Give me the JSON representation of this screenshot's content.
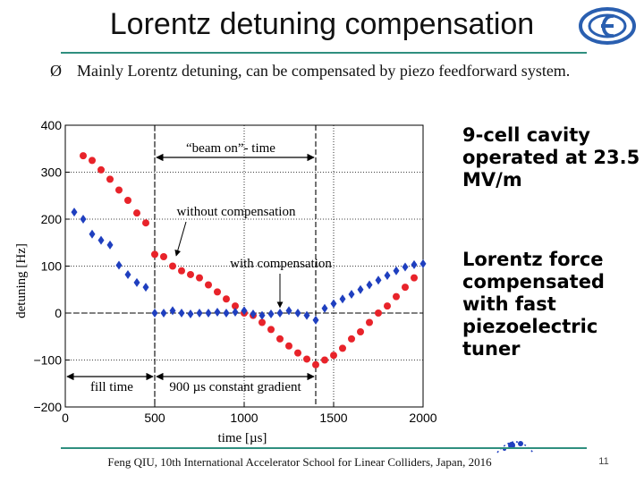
{
  "slide": {
    "title": "Lorentz detuning compensation",
    "bullet_marker": "Ø",
    "bullet_text": "Mainly Lorentz detuning, can be compensated by piezo feedforward system.",
    "side_text_1": "9-cell cavity operated at 23.5 MV/m",
    "side_text_2": "Lorentz force compensated with fast piezoelectric tuner",
    "footer": "Feng QIU, 10th International Accelerator School for Linear Colliders, Japan, 2016",
    "page_number": "11"
  },
  "colors": {
    "rule": "#2f8f7f",
    "without_series": "#e8232a",
    "with_series": "#1f3fbf",
    "logo": "#2a5fb0"
  },
  "icons": {
    "logo": "institute-logo-icon",
    "bullet": "arrow-bullet-icon"
  },
  "chart_data": {
    "type": "scatter",
    "xlabel": "time [µs]",
    "ylabel": "detuning [Hz]",
    "xlim": [
      0,
      2000
    ],
    "ylim": [
      -200,
      400
    ],
    "xticks": [
      0,
      500,
      1000,
      1500,
      2000
    ],
    "xtick_labels": [
      "0",
      "500",
      "1000",
      "1500",
      "2000"
    ],
    "yticks": [
      -200,
      -100,
      0,
      100,
      200,
      300,
      400
    ],
    "ytick_labels": [
      "−200",
      "−100",
      "0",
      "100",
      "200",
      "300",
      "400"
    ],
    "grid": true,
    "reference_lines": {
      "beam_on_start": 500,
      "beam_on_end": 1400,
      "zero": 0
    },
    "annotations": {
      "beam_on": "“beam on”- time",
      "without": "without compensation",
      "with": "with compensation",
      "fill_time": "fill time",
      "flat_top": "900 µs constant gradient"
    },
    "series": [
      {
        "name": "without compensation",
        "marker": "circle",
        "x": [
          100,
          150,
          200,
          250,
          300,
          350,
          400,
          450,
          500,
          550,
          600,
          650,
          700,
          750,
          800,
          850,
          900,
          950,
          1000,
          1050,
          1100,
          1150,
          1200,
          1250,
          1300,
          1350,
          1400,
          1450,
          1500,
          1550,
          1600,
          1650,
          1700,
          1750,
          1800,
          1850,
          1900,
          1950
        ],
        "y": [
          335,
          325,
          305,
          285,
          262,
          240,
          213,
          192,
          125,
          120,
          100,
          90,
          82,
          75,
          60,
          45,
          30,
          15,
          0,
          -5,
          -20,
          -35,
          -55,
          -70,
          -85,
          -98,
          -110,
          -100,
          -90,
          -75,
          -55,
          -40,
          -20,
          0,
          15,
          35,
          55,
          75
        ]
      },
      {
        "name": "with compensation",
        "marker": "diamond",
        "x": [
          50,
          100,
          150,
          200,
          250,
          300,
          350,
          400,
          450,
          500,
          550,
          600,
          650,
          700,
          750,
          800,
          850,
          900,
          950,
          1000,
          1050,
          1100,
          1150,
          1200,
          1250,
          1300,
          1350,
          1400,
          1450,
          1500,
          1550,
          1600,
          1650,
          1700,
          1750,
          1800,
          1850,
          1900,
          1950,
          2000
        ],
        "y": [
          215,
          200,
          168,
          155,
          145,
          102,
          82,
          65,
          55,
          0,
          0,
          5,
          0,
          -2,
          0,
          0,
          2,
          0,
          2,
          5,
          -2,
          -5,
          -2,
          0,
          5,
          0,
          -5,
          -15,
          10,
          20,
          30,
          40,
          50,
          60,
          70,
          80,
          90,
          98,
          103,
          105
        ]
      }
    ]
  }
}
